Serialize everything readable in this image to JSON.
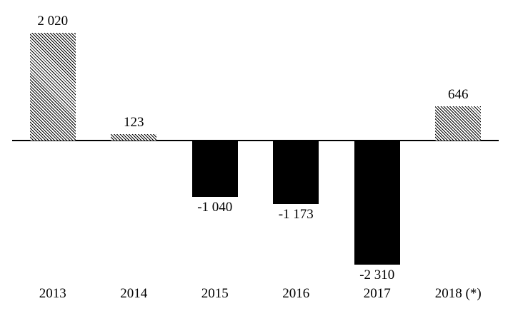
{
  "chart_data": {
    "type": "bar",
    "title": "",
    "xlabel": "",
    "ylabel": "",
    "categories": [
      "2013",
      "2014",
      "2015",
      "2016",
      "2017",
      "2018 (*)"
    ],
    "values": [
      2020,
      123,
      -1040,
      -1173,
      -2310,
      646
    ],
    "value_labels": [
      "2 020",
      "123",
      "-1 040",
      "-1 173",
      "-2 310",
      "646"
    ],
    "bar_styles": [
      "hatch",
      "hatch",
      "solid",
      "solid",
      "solid",
      "hatch"
    ],
    "ylim": [
      -2600,
      2200
    ],
    "grid": false,
    "legend": "none",
    "axis": {
      "baseline_value": 0,
      "y_axis_labels_visible": false,
      "x_axis_line_visible": true
    },
    "colors": {
      "positive_bar_pattern": "diagonal-hatch-black-on-white",
      "negative_bar_fill": "#000000",
      "axis_line": "#000000",
      "text": "#000000",
      "background": "#ffffff"
    }
  }
}
